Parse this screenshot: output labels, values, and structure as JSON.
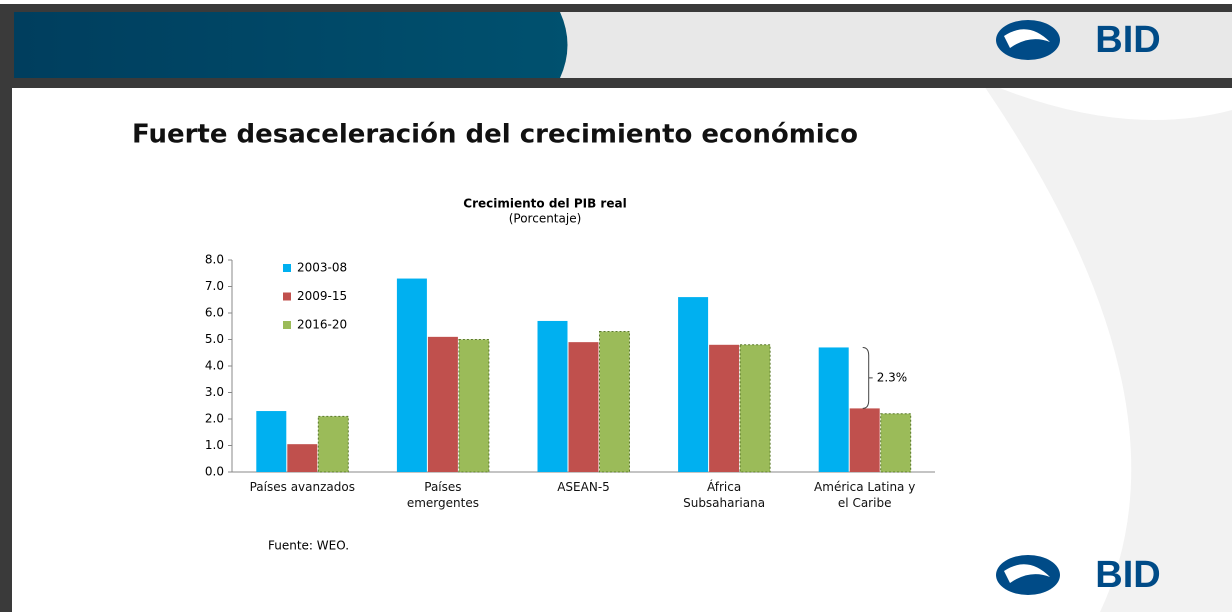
{
  "header": {
    "logo_top": "BID",
    "logo_bottom": "BID"
  },
  "slide_title": "Fuerte desaceleración del crecimiento económico",
  "source": "Fuente: WEO.",
  "chart_data": {
    "type": "bar",
    "title": "Crecimiento del PIB real",
    "subtitle": "(Porcentaje)",
    "categories": [
      "Países avanzados",
      "Países emergentes",
      "ASEAN-5",
      "África Subsahariana",
      "América Latina y el Caribe"
    ],
    "series": [
      {
        "name": "2003-08",
        "color": "#00b0f0",
        "values": [
          2.3,
          7.3,
          5.7,
          6.6,
          4.7
        ]
      },
      {
        "name": "2009-15",
        "color": "#c0504d",
        "values": [
          1.05,
          5.1,
          4.9,
          4.8,
          2.4
        ]
      },
      {
        "name": "2016-20",
        "color": "#9bbb59",
        "values": [
          2.1,
          5.0,
          5.3,
          4.8,
          2.2
        ]
      }
    ],
    "ylim": [
      0,
      8
    ],
    "yticks": [
      {
        "value": 0,
        "label": "0.0"
      },
      {
        "value": 1,
        "label": "1.0"
      },
      {
        "value": 2,
        "label": "2.0"
      },
      {
        "value": 3,
        "label": "3.0"
      },
      {
        "value": 4,
        "label": "4.0"
      },
      {
        "value": 5,
        "label": "5.0"
      },
      {
        "value": 6,
        "label": "6.0"
      },
      {
        "value": 7,
        "label": "7.0"
      },
      {
        "value": 8,
        "label": "8.0"
      }
    ],
    "legend": "upper left",
    "annotation": "2.3%"
  }
}
